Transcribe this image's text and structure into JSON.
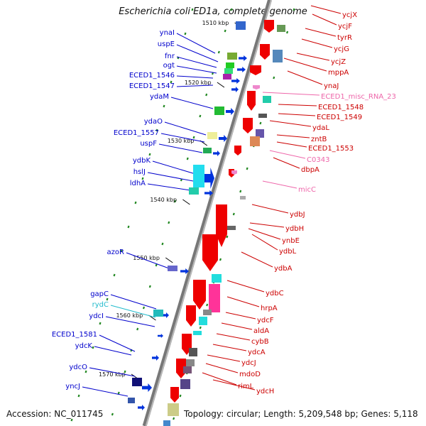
{
  "title": "Escherichia coli ED1a, complete genome",
  "footer": {
    "accession": "Accession: NC_011745",
    "summary": "Topology: circular; Length: 5,209,548 bp; Genes: 5,118"
  },
  "colors": {
    "left_label": "#0000cc",
    "right_label": "#cc0000",
    "rna_label": "#ee66aa",
    "teal_label": "#22bbcc",
    "axis": "#777777",
    "ruler_dash": "#228822"
  },
  "kbp_labels": [
    "1510 kbp",
    "1520 kbp",
    "1530 kbp",
    "1540 kbp",
    "1550 kbp",
    "1560 kbp",
    "1570 kbp"
  ],
  "left_genes": [
    "ynaI",
    "uspE",
    "fnr",
    "ogt",
    "ECED1_1546",
    "ECED1_1547",
    "ydaM",
    "ydaO",
    "ECED1_1557",
    "uspF",
    "ydbK",
    "hslJ",
    "ldhA",
    "azoR",
    "gapC",
    "rydC",
    "ydcI",
    "ECED1_1581",
    "ydcK",
    "ydcO",
    "yncJ"
  ],
  "right_genes": [
    "ycjX",
    "ycjF",
    "tyrR",
    "ycjG",
    "ycjZ",
    "mppA",
    "ynaJ",
    "ECED1_misc_RNA_23",
    "ECED1_1548",
    "ECED1_1549",
    "ydaL",
    "zntB",
    "ECED1_1553",
    "C0343",
    "dbpA",
    "micC",
    "ydbJ",
    "ydbH",
    "ynbE",
    "ydbL",
    "ydbA",
    "ydbC",
    "hrpA",
    "ydcF",
    "aldA",
    "cybB",
    "ydcA",
    "ydcJ",
    "mdoD",
    "rimL",
    "ydcH"
  ]
}
